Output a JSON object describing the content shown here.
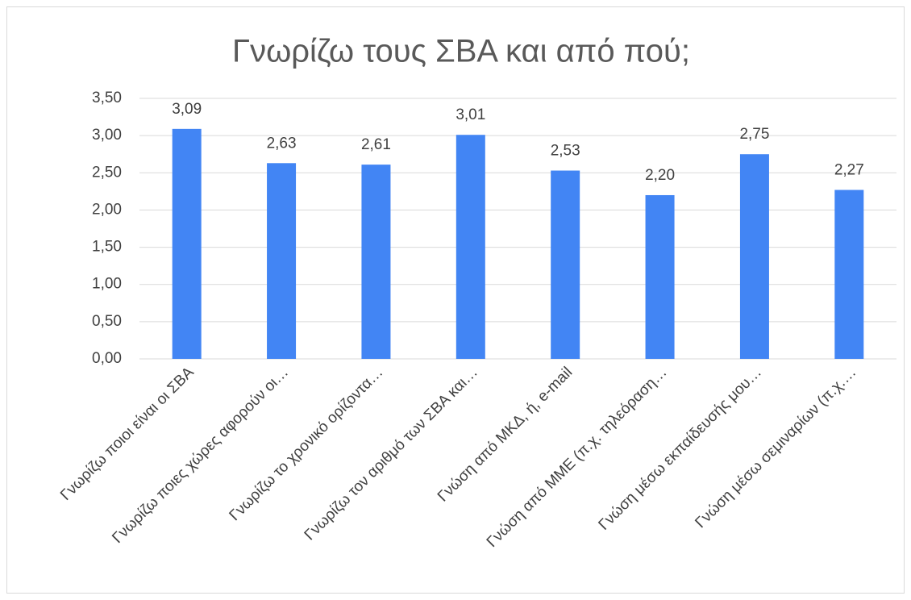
{
  "chart_data": {
    "type": "bar",
    "title": "Γνωρίζω τους ΣΒΑ και από πού;",
    "categories": [
      "Γνωρίζω ποιοι είναι οι ΣΒΑ",
      "Γνωρίζω ποιες χώρες αφορούν οι…",
      "Γνωρίζω το χρονικό ορίζοντα…",
      "Γνωρίζω τον αριθμό των ΣΒΑ και…",
      "Γνώση από ΜΚΔ, ή, e-mail",
      "Γνώση από ΜΜΕ (π.χ. τηλεόραση…",
      "Γνώση μέσω εκπαίδευσής μου…",
      "Γνώση μέσω σεμιναρίων (π.χ.…"
    ],
    "values": [
      3.09,
      2.63,
      2.61,
      3.01,
      2.53,
      2.2,
      2.75,
      2.27
    ],
    "value_labels": [
      "3,09",
      "2,63",
      "2,61",
      "3,01",
      "2,53",
      "2,20",
      "2,75",
      "2,27"
    ],
    "color": "#4285f4",
    "ylim": [
      0,
      3.5
    ],
    "yticks": [
      {
        "value": 0,
        "label": "0,00"
      },
      {
        "value": 0.5,
        "label": "0,50"
      },
      {
        "value": 1,
        "label": "1,00"
      },
      {
        "value": 1.5,
        "label": "1,50"
      },
      {
        "value": 2,
        "label": "2,00"
      },
      {
        "value": 2.5,
        "label": "2,50"
      },
      {
        "value": 3,
        "label": "3,00"
      },
      {
        "value": 3.5,
        "label": "3,50"
      }
    ],
    "grid": true
  }
}
